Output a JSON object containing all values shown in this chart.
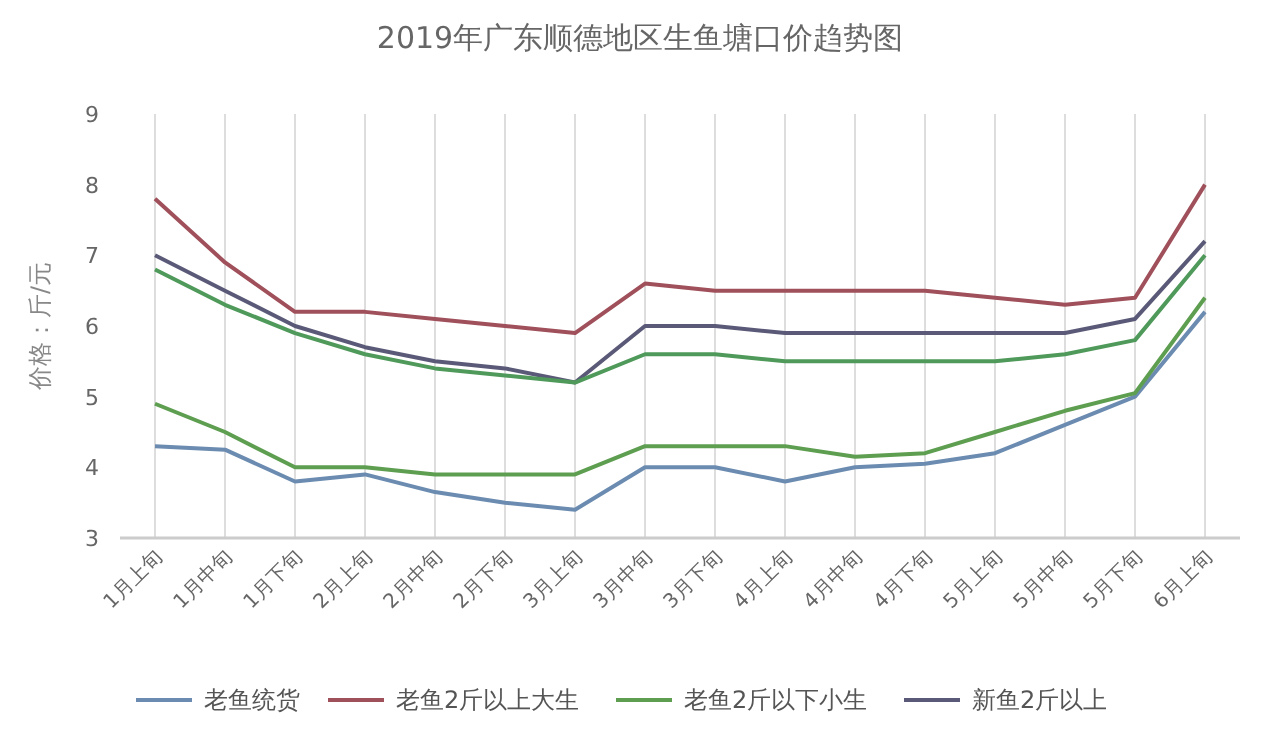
{
  "chart_data": {
    "type": "line",
    "title": "2019年广东顺德地区生鱼塘口价趋势图",
    "ylabel": "价格：斤/元",
    "categories": [
      "1月上旬",
      "1月中旬",
      "1月下旬",
      "2月上旬",
      "2月中旬",
      "2月下旬",
      "3月上旬",
      "3月中旬",
      "3月下旬",
      "4月上旬",
      "4月中旬",
      "4月下旬",
      "5月上旬",
      "5月中旬",
      "5月下旬",
      "6月上旬"
    ],
    "series": [
      {
        "name": "老鱼统货",
        "color": "#6b8cb0",
        "values": [
          4.3,
          4.25,
          3.8,
          3.9,
          3.65,
          3.5,
          3.4,
          4.0,
          4.0,
          3.8,
          4.0,
          4.05,
          4.2,
          4.6,
          5.0,
          6.2
        ]
      },
      {
        "name": "老鱼2斤以上大生",
        "color": "#a0505a",
        "values": [
          7.8,
          6.9,
          6.2,
          6.2,
          6.1,
          6.0,
          5.9,
          6.6,
          6.5,
          6.5,
          6.5,
          6.5,
          6.4,
          6.3,
          6.4,
          8.0
        ]
      },
      {
        "name": "老鱼2斤以下小生",
        "color": "#5e9e50",
        "values": [
          4.9,
          4.5,
          4.0,
          4.0,
          3.9,
          3.9,
          3.9,
          4.3,
          4.3,
          4.3,
          4.15,
          4.2,
          4.5,
          4.8,
          5.05,
          6.4
        ]
      },
      {
        "name": "新鱼2斤以上",
        "color": "#5a5a78",
        "values": [
          7.0,
          6.5,
          6.0,
          5.7,
          5.5,
          5.4,
          5.2,
          6.0,
          6.0,
          5.9,
          5.9,
          5.9,
          5.9,
          5.9,
          6.1,
          7.2
        ]
      },
      {
        "color": "#4f9a5a",
        "values": [
          6.8,
          6.3,
          5.9,
          5.6,
          5.4,
          5.3,
          5.2,
          5.6,
          5.6,
          5.5,
          5.5,
          5.5,
          5.5,
          5.6,
          5.8,
          7.0
        ]
      }
    ],
    "ylim": [
      3,
      9
    ],
    "yticks": [
      3,
      4,
      5,
      6,
      7,
      8,
      9
    ],
    "grid": "x",
    "legend": "bottom",
    "marker": "none",
    "line_style": "solid"
  }
}
